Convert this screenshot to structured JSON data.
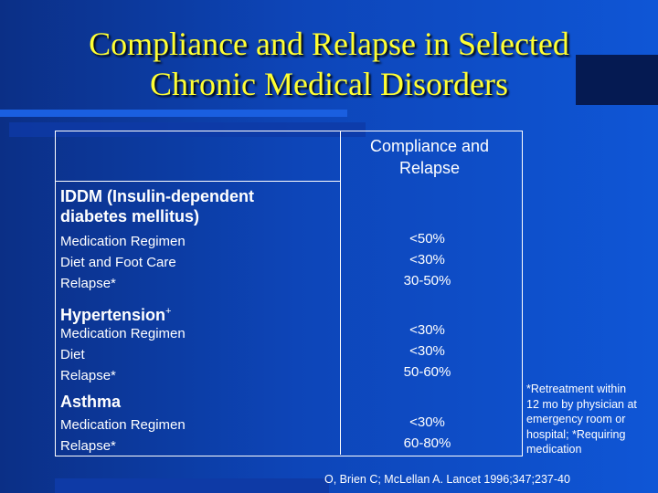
{
  "title": {
    "line1": "Compliance and Relapse in Selected",
    "line2": "Chronic Medical Disorders"
  },
  "header": {
    "line1": "Compliance and",
    "line2": "Relapse"
  },
  "sections": [
    {
      "name_line1": "IDDM (Insulin-dependent",
      "name_line2": "diabetes mellitus)",
      "items": [
        "Medication Regimen",
        "Diet and Foot Care",
        "Relapse*"
      ],
      "values": [
        "<50%",
        "<30%",
        "30-50%"
      ]
    },
    {
      "name": "Hypertension",
      "name_sup": "+",
      "items": [
        "Medication Regimen",
        "Diet",
        "Relapse*"
      ],
      "values": [
        "<30%",
        "<30%",
        "50-60%"
      ]
    },
    {
      "name": "Asthma",
      "items": [
        "Medication Regimen",
        "Relapse*"
      ],
      "values": [
        "<30%",
        "60-80%"
      ]
    }
  ],
  "footnote": [
    "*Retreatment within",
    "12 mo by physician at",
    "emergency room or",
    "hospital; *Requiring",
    "medication"
  ],
  "citation": "O, Brien C; McLellan A. Lancet 1996;347;237-40"
}
